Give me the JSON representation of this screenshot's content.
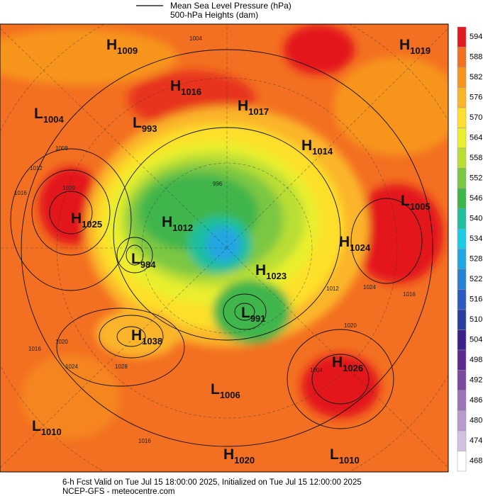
{
  "header": {
    "line1": "Mean Sea Level Pressure (hPa)",
    "line2": "500-hPa Heights (dam)"
  },
  "colorbar": {
    "levels": [
      594,
      588,
      582,
      576,
      570,
      564,
      558,
      552,
      546,
      540,
      534,
      528,
      522,
      516,
      510,
      504,
      498,
      492,
      486,
      480,
      474,
      468
    ],
    "colors": [
      "#e3191f",
      "#f36f21",
      "#f7941d",
      "#fbb52a",
      "#fde02c",
      "#e9ef2d",
      "#b9de35",
      "#7cc743",
      "#3fb54b",
      "#1fbf9e",
      "#1ecbe6",
      "#22a6e2",
      "#2a80d1",
      "#2c5cbf",
      "#283f9f",
      "#3b1f8b",
      "#5b2a91",
      "#7c4b9f",
      "#9b74b6",
      "#b89bcc",
      "#d2c1e0",
      "#ffffff"
    ]
  },
  "centers": [
    {
      "letter": "H",
      "pressure": 1009
    },
    {
      "letter": "H",
      "pressure": 1016
    },
    {
      "letter": "H",
      "pressure": 1017
    },
    {
      "letter": "L",
      "pressure": 1004
    },
    {
      "letter": "L",
      "pressure": 993
    },
    {
      "letter": "H",
      "pressure": 1014
    },
    {
      "letter": "H",
      "pressure": 1019
    },
    {
      "letter": "L",
      "pressure": 1005
    },
    {
      "letter": "H",
      "pressure": 1025
    },
    {
      "letter": "H",
      "pressure": 1012
    },
    {
      "letter": "L",
      "pressure": 984
    },
    {
      "letter": "H",
      "pressure": 1024
    },
    {
      "letter": "H",
      "pressure": 1023
    },
    {
      "letter": "L",
      "pressure": 991
    },
    {
      "letter": "H",
      "pressure": 1038
    },
    {
      "letter": "H",
      "pressure": 1026
    },
    {
      "letter": "L",
      "pressure": 1006
    },
    {
      "letter": "L",
      "pressure": 1010
    },
    {
      "letter": "H",
      "pressure": 1020
    },
    {
      "letter": "L",
      "pressure": 1010
    }
  ],
  "isobar_labels": [
    1008,
    1012,
    1016,
    1020,
    996,
    1004,
    1024,
    1028,
    1016,
    1020,
    1016,
    1012,
    1020,
    1004,
    1016,
    1024
  ],
  "footer": {
    "line1": "6-h Fcst Valid on Tue Jul 15 18:00:00 2025, Initialized on Tue Jul 15 12:00:00 2025",
    "line2": "NCEP-GFS  - meteocentre.com"
  }
}
